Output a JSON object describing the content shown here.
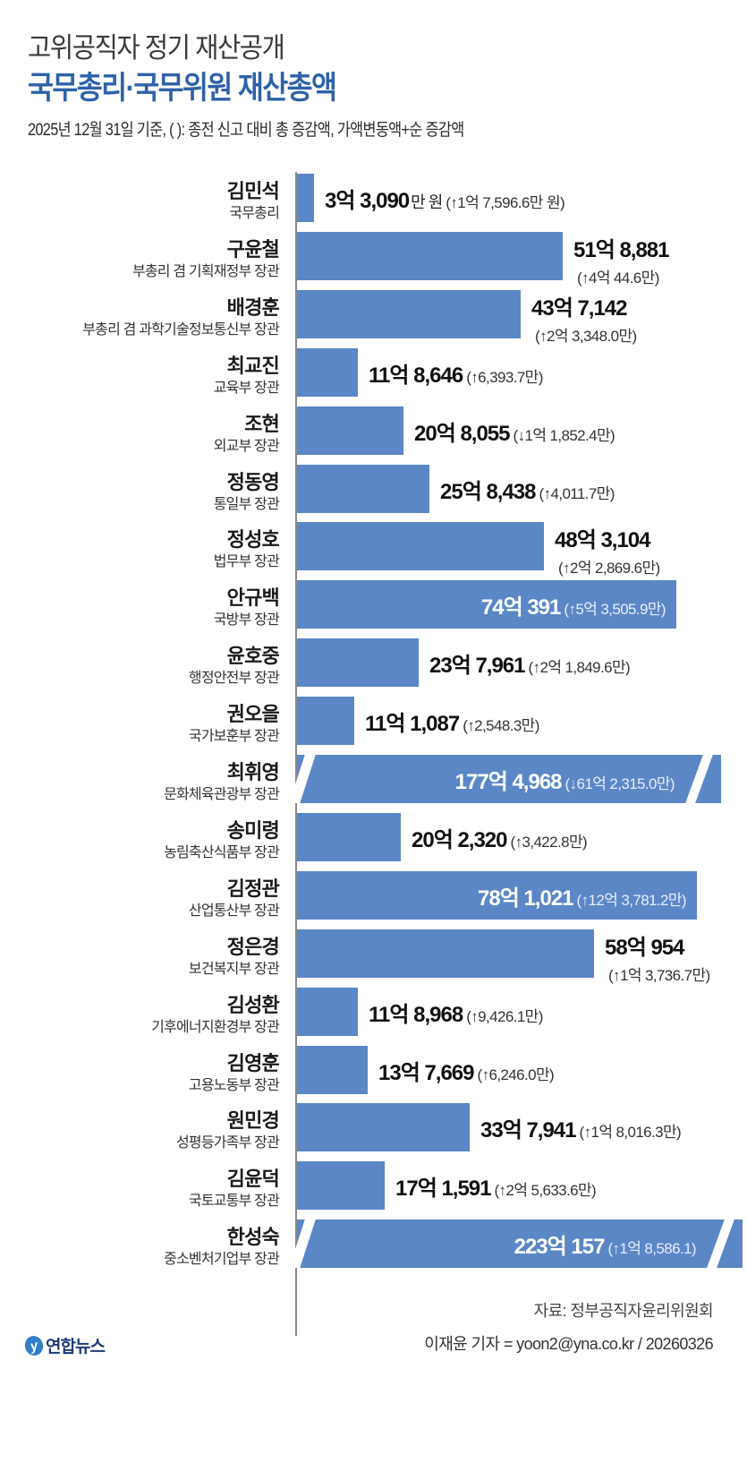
{
  "header": {
    "supertitle": "고위공직자 정기 재산공개",
    "title": "국무총리·국무위원 재산총액",
    "subtitle": "2025년 12월 31일 기준, ( ): 종전 신고 대비 총 증감액, 가액변동액+순 증감액"
  },
  "colors": {
    "bar": "#5b87c6",
    "title": "#2e62a8",
    "axis": "#8a8a8a"
  },
  "rows": [
    {
      "name": "김민석",
      "role": "국무총리",
      "amount": "3억 3,090",
      "unit": "만 원",
      "change": "(↑1억 7,596.6만 원)"
    },
    {
      "name": "구윤철",
      "role": "부총리 겸 기획재정부 장관",
      "amount": "51억 8,881",
      "unit": "",
      "change": "(↑4억 44.6만)"
    },
    {
      "name": "배경훈",
      "role": "부총리 겸 과학기술정보통신부 장관",
      "amount": "43억 7,142",
      "unit": "",
      "change": "(↑2억 3,348.0만)"
    },
    {
      "name": "최교진",
      "role": "교육부 장관",
      "amount": "11억 8,646",
      "unit": "",
      "change": "(↑6,393.7만)"
    },
    {
      "name": "조현",
      "role": "외교부 장관",
      "amount": "20억 8,055",
      "unit": "",
      "change": "(↓1억 1,852.4만)"
    },
    {
      "name": "정동영",
      "role": "통일부 장관",
      "amount": "25억 8,438",
      "unit": "",
      "change": "(↑4,011.7만)"
    },
    {
      "name": "정성호",
      "role": "법무부 장관",
      "amount": "48억 3,104",
      "unit": "",
      "change": "(↑2억 2,869.6만)"
    },
    {
      "name": "안규백",
      "role": "국방부 장관",
      "amount": "74억 391",
      "unit": "",
      "change": "(↑5억 3,505.9만)"
    },
    {
      "name": "윤호중",
      "role": "행정안전부 장관",
      "amount": "23억 7,961",
      "unit": "",
      "change": "(↑2억 1,849.6만)"
    },
    {
      "name": "권오을",
      "role": "국가보훈부 장관",
      "amount": "11억 1,087",
      "unit": "",
      "change": "(↑2,548.3만)"
    },
    {
      "name": "최휘영",
      "role": "문화체육관광부 장관",
      "amount": "177억 4,968",
      "unit": "",
      "change": "(↓61억 2,315.0만)"
    },
    {
      "name": "송미령",
      "role": "농림축산식품부 장관",
      "amount": "20억 2,320",
      "unit": "",
      "change": "(↑3,422.8만)"
    },
    {
      "name": "김정관",
      "role": "산업통산부 장관",
      "amount": "78억 1,021",
      "unit": "",
      "change": "(↑12억 3,781.2만)"
    },
    {
      "name": "정은경",
      "role": "보건복지부 장관",
      "amount": "58억 954",
      "unit": "",
      "change": "(↑1억 3,736.7만)"
    },
    {
      "name": "김성환",
      "role": "기후에너지환경부 장관",
      "amount": "11억 8,968",
      "unit": "",
      "change": "(↑9,426.1만)"
    },
    {
      "name": "김영훈",
      "role": "고용노동부 장관",
      "amount": "13억 7,669",
      "unit": "",
      "change": "(↑6,246.0만)"
    },
    {
      "name": "원민경",
      "role": "성평등가족부 장관",
      "amount": "33억 7,941",
      "unit": "",
      "change": "(↑1억 8,016.3만)"
    },
    {
      "name": "김윤덕",
      "role": "국토교통부 장관",
      "amount": "17억 1,591",
      "unit": "",
      "change": "(↑2억 5,633.6만)"
    },
    {
      "name": "한성숙",
      "role": "중소벤처기업부 장관",
      "amount": "223억 157",
      "unit": "",
      "change": "(↑1억 8,586.1)"
    }
  ],
  "footer": {
    "source": "자료: 정부공직자윤리위원회",
    "credit": "이재윤 기자 = yoon2@yna.co.kr / 20260326",
    "logo_text": "연합뉴스",
    "logo_mark": "y"
  },
  "chart_data": {
    "type": "bar",
    "orientation": "horizontal",
    "title": "국무총리·국무위원 재산총액",
    "subtitle": "2025년 12월 31일 기준, ( ): 종전 신고 대비 총 증감액, 가액변동액+순 증감액",
    "xlabel": "",
    "ylabel": "",
    "unit": "만 원",
    "grid": false,
    "legend": null,
    "axis_break": [
      "최휘영",
      "한성숙"
    ],
    "categories": [
      "김민석",
      "구윤철",
      "배경훈",
      "최교진",
      "조현",
      "정동영",
      "정성호",
      "안규백",
      "윤호중",
      "권오을",
      "최휘영",
      "송미령",
      "김정관",
      "정은경",
      "김성환",
      "김영훈",
      "원민경",
      "김윤덕",
      "한성숙"
    ],
    "roles": [
      "국무총리",
      "부총리 겸 기획재정부 장관",
      "부총리 겸 과학기술정보통신부 장관",
      "교육부 장관",
      "외교부 장관",
      "통일부 장관",
      "법무부 장관",
      "국방부 장관",
      "행정안전부 장관",
      "국가보훈부 장관",
      "문화체육관광부 장관",
      "농림축산식품부 장관",
      "산업통산부 장관",
      "보건복지부 장관",
      "기후에너지환경부 장관",
      "고용노동부 장관",
      "성평등가족부 장관",
      "국토교통부 장관",
      "중소벤처기업부 장관"
    ],
    "series": [
      {
        "name": "재산총액(만 원)",
        "values": [
          33090,
          518881,
          437142,
          118646,
          208055,
          258438,
          483104,
          740391,
          237961,
          111087,
          1774968,
          202320,
          781021,
          580954,
          118968,
          137669,
          337941,
          171591,
          2230157
        ]
      },
      {
        "name": "증감액(만 원)",
        "values": [
          17596.6,
          40044.6,
          23348.0,
          6393.7,
          -11852.4,
          4011.7,
          22869.6,
          53505.9,
          21849.6,
          2548.3,
          -612315.0,
          3422.8,
          123781.2,
          13736.7,
          9426.1,
          6246.0,
          18016.3,
          25633.6,
          18586.1
        ]
      }
    ]
  }
}
